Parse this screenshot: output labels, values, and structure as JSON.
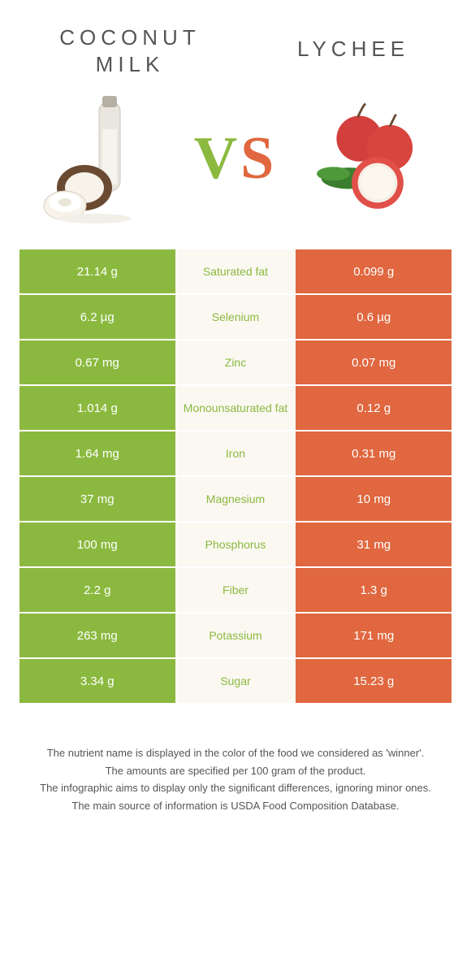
{
  "colors": {
    "left_side": "#8bb93f",
    "right_side": "#e0673f",
    "mid_bg": "#fbf8f2",
    "text_dark": "#555555",
    "white": "#ffffff"
  },
  "title_left": "Coconut\nmilk",
  "title_right": "Lychee",
  "vs": {
    "v": "V",
    "s": "S"
  },
  "rows": [
    {
      "left": "21.14 g",
      "label": "Saturated fat",
      "right": "0.099 g",
      "winner": "left"
    },
    {
      "left": "6.2 µg",
      "label": "Selenium",
      "right": "0.6 µg",
      "winner": "left"
    },
    {
      "left": "0.67 mg",
      "label": "Zinc",
      "right": "0.07 mg",
      "winner": "left"
    },
    {
      "left": "1.014 g",
      "label": "Monounsaturated fat",
      "right": "0.12 g",
      "winner": "left"
    },
    {
      "left": "1.64 mg",
      "label": "Iron",
      "right": "0.31 mg",
      "winner": "left"
    },
    {
      "left": "37 mg",
      "label": "Magnesium",
      "right": "10 mg",
      "winner": "left"
    },
    {
      "left": "100 mg",
      "label": "Phosphorus",
      "right": "31 mg",
      "winner": "left"
    },
    {
      "left": "2.2 g",
      "label": "Fiber",
      "right": "1.3 g",
      "winner": "left"
    },
    {
      "left": "263 mg",
      "label": "Potassium",
      "right": "171 mg",
      "winner": "left"
    },
    {
      "left": "3.34 g",
      "label": "Sugar",
      "right": "15.23 g",
      "winner": "left"
    }
  ],
  "footnotes": [
    "The nutrient name is displayed in the color of the food we considered as 'winner'.",
    "The amounts are specified per 100 gram of the product.",
    "The infographic aims to display only the significant differences, ignoring minor ones.",
    "The main source of information is USDA Food Composition Database."
  ]
}
